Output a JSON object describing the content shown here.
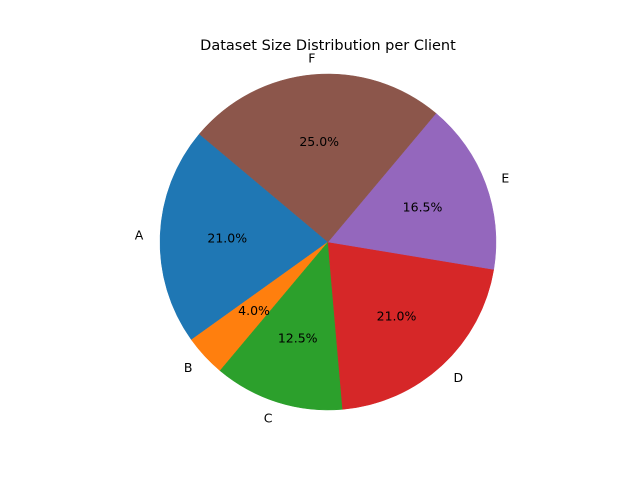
{
  "chart_data": {
    "type": "pie",
    "title": "Dataset Size Distribution per Client",
    "labels": [
      "A",
      "B",
      "C",
      "D",
      "E",
      "F"
    ],
    "values": [
      21.0,
      4.0,
      12.5,
      21.0,
      16.5,
      25.0
    ],
    "pct_labels": [
      "21.0%",
      "4.0%",
      "12.5%",
      "21.0%",
      "16.5%",
      "25.0%"
    ],
    "colors": [
      "#1f77b4",
      "#ff7f0e",
      "#2ca02c",
      "#d62728",
      "#9467bd",
      "#8c564b"
    ],
    "start_angle_deg": 140,
    "direction": "counterclockwise",
    "legend": false
  }
}
